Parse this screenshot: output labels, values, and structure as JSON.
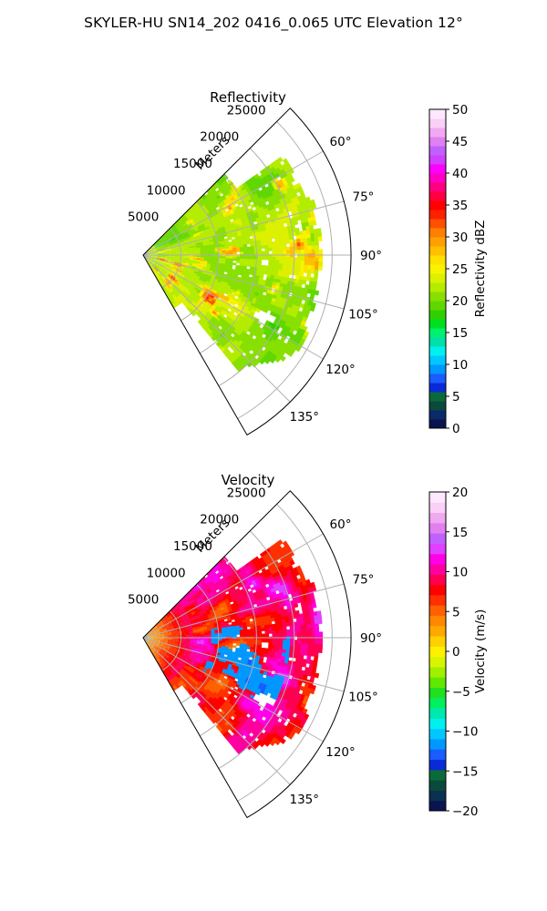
{
  "figure": {
    "title": "SKYLER-HU  SN14_202  0416_0.065 UTC Elevation 12°"
  },
  "chart_data": [
    {
      "type": "heatmap",
      "subtype": "polar-sector-radar",
      "title": "Reflectivity",
      "radial_label": "Meters",
      "radial_ticks": [
        5000,
        10000,
        15000,
        20000,
        25000
      ],
      "radial_tick_labels": [
        "5000",
        "10000",
        "15000",
        "20000",
        "25000"
      ],
      "r_max": 27500,
      "azimuth_range_deg": [
        45,
        150
      ],
      "azimuth_ticks": [
        60,
        75,
        90,
        105,
        120,
        135
      ],
      "azimuth_tick_labels": [
        "60°",
        "75°",
        "90°",
        "105°",
        "120°",
        "135°"
      ],
      "grid": true,
      "colorbar": {
        "label": "Reflectivity dBZ",
        "min": 0,
        "max": 50,
        "ticks": [
          0,
          5,
          10,
          15,
          20,
          25,
          30,
          35,
          40,
          45,
          50
        ],
        "tick_labels": [
          "0",
          "5",
          "10",
          "15",
          "20",
          "25",
          "30",
          "35",
          "40",
          "45",
          "50"
        ],
        "colors": [
          "#0a1450",
          "#0a2a6a",
          "#0a4a3a",
          "#0b6a3a",
          "#0a2ad8",
          "#1a5cff",
          "#0098ff",
          "#00c8ff",
          "#00f0f0",
          "#00e0a8",
          "#00f070",
          "#00e020",
          "#30d000",
          "#60d800",
          "#88e000",
          "#b4ec00",
          "#dcf000",
          "#f8f400",
          "#ffe000",
          "#ffc000",
          "#ffa000",
          "#ff8000",
          "#ff5000",
          "#ff2000",
          "#ff0000",
          "#ff0040",
          "#ff0080",
          "#ff00c0",
          "#ff00ff",
          "#d040ff",
          "#c060ff",
          "#e080f0",
          "#f0a8f0",
          "#f8d0f8",
          "#ffe8ff"
        ]
      },
      "field_summary": "Mostly 18–25 dBZ (green/yellow) with scattered 25–38 dBZ cells (orange/red)"
    },
    {
      "type": "heatmap",
      "subtype": "polar-sector-radar",
      "title": "Velocity",
      "radial_label": "Meters",
      "radial_ticks": [
        5000,
        10000,
        15000,
        20000,
        25000
      ],
      "radial_tick_labels": [
        "5000",
        "10000",
        "15000",
        "20000",
        "25000"
      ],
      "r_max": 27500,
      "azimuth_range_deg": [
        45,
        150
      ],
      "azimuth_ticks": [
        60,
        75,
        90,
        105,
        120,
        135
      ],
      "azimuth_tick_labels": [
        "60°",
        "75°",
        "90°",
        "105°",
        "120°",
        "135°"
      ],
      "grid": true,
      "colorbar": {
        "label": "Velocity (m/s)",
        "min": -20,
        "max": 20,
        "ticks": [
          -20,
          -15,
          -10,
          -5,
          0,
          5,
          10,
          15,
          20
        ],
        "tick_labels": [
          "−20",
          "−15",
          "−10",
          "−5",
          "0",
          "5",
          "10",
          "15",
          "20"
        ],
        "colors": [
          "#0a1450",
          "#0a3050",
          "#0a4a3a",
          "#0b6a3a",
          "#0a2ad8",
          "#1a5cff",
          "#0098ff",
          "#00c8ff",
          "#00f0f0",
          "#00e8b0",
          "#00f060",
          "#20e020",
          "#60e800",
          "#a0f000",
          "#d8f400",
          "#fff000",
          "#ffd000",
          "#ffa800",
          "#ff8800",
          "#ff6000",
          "#ff3000",
          "#ff0000",
          "#ff0050",
          "#ff00a0",
          "#ff00e8",
          "#e040ff",
          "#c060ff",
          "#e080f0",
          "#f0a8f0",
          "#f8d0f8",
          "#ffe8ff"
        ]
      },
      "field_summary": "Positive velocities 5–15 m/s (red/magenta) dominating, inbound pockets of −8 to −12 m/s (cyan) near center"
    }
  ]
}
